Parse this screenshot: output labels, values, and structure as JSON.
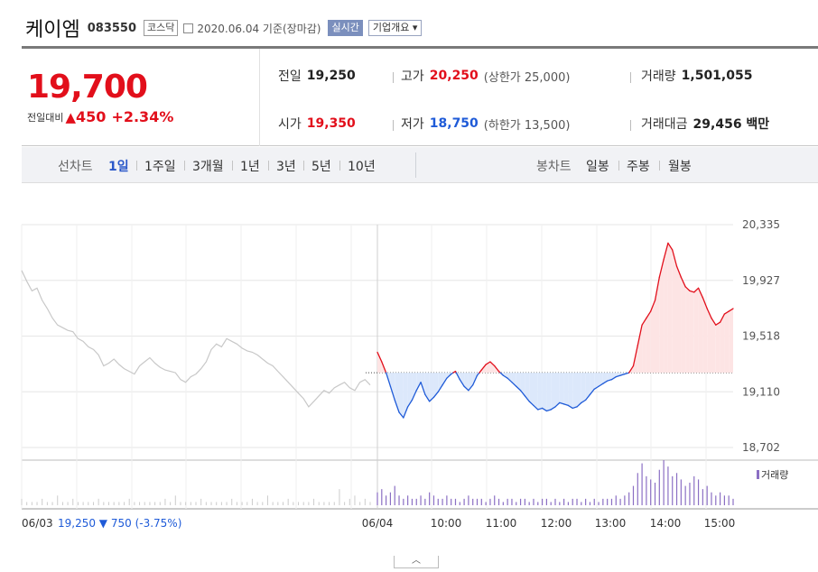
{
  "header": {
    "company_name": "케이엠",
    "code": "083550",
    "market": "코스닥",
    "date_text": "2020.06.04 기준(장마감)",
    "realtime_label": "실시간",
    "info_label": "기업개요 ▾"
  },
  "summary": {
    "price": "19,700",
    "change_label": "전일대비",
    "change_icon": "up-triangle-icon",
    "change_symbol": "▲",
    "change_value": "450",
    "change_pct": "+2.34%",
    "prev_label": "전일",
    "prev_value": "19,250",
    "high_label": "고가",
    "high_value": "20,250",
    "upper_limit": "(상한가 25,000)",
    "volume_label": "거래량",
    "volume_value": "1,501,055",
    "open_label": "시가",
    "open_value": "19,350",
    "low_label": "저가",
    "low_value": "18,750",
    "lower_limit": "(하한가 13,500)",
    "amount_label": "거래대금",
    "amount_value": "29,456 백만"
  },
  "period": {
    "line_label": "선차트",
    "line_tabs": [
      "1일",
      "1주일",
      "3개월",
      "1년",
      "3년",
      "5년",
      "10년"
    ],
    "selected": "1일",
    "candle_label": "봉차트",
    "candle_tabs": [
      "일봉",
      "주봉",
      "월봉"
    ]
  },
  "colors": {
    "up": "#e20f1b",
    "down": "#1f5bd8",
    "up_fill": "#fde4e4",
    "down_fill": "#dce8fb",
    "prev_day_line": "#c8c8c8",
    "volume_bar": "#8b6fc4"
  },
  "footer": {
    "prev_date": "06/03",
    "prev_close": "19,250",
    "prev_change_symbol": "▼",
    "prev_change": "750",
    "prev_change_pct": "(-3.75%)"
  },
  "chart_data": {
    "type": "line",
    "base_price": 19250,
    "ylim": [
      18702,
      20335
    ],
    "y_ticks": [
      "20,335",
      "19,927",
      "19,518",
      "19,110",
      "18,702"
    ],
    "x_ticks": [
      "06/03",
      "06/04",
      "10:00",
      "11:00",
      "12:00",
      "13:00",
      "14:00",
      "15:00"
    ],
    "volume_legend": "거래량",
    "prev_day": {
      "date": "06/03",
      "values": [
        20000,
        19920,
        19850,
        19870,
        19780,
        19720,
        19650,
        19600,
        19580,
        19560,
        19550,
        19500,
        19480,
        19440,
        19420,
        19380,
        19300,
        19320,
        19350,
        19310,
        19280,
        19260,
        19240,
        19300,
        19330,
        19360,
        19320,
        19290,
        19270,
        19260,
        19250,
        19200,
        19180,
        19220,
        19240,
        19280,
        19330,
        19420,
        19460,
        19440,
        19500,
        19480,
        19460,
        19430,
        19410,
        19400,
        19380,
        19350,
        19320,
        19300,
        19260,
        19220,
        19180,
        19140,
        19100,
        19060,
        19000,
        19040,
        19080,
        19120,
        19100,
        19140,
        19160,
        19180,
        19140,
        19120,
        19180,
        19200,
        19160
      ]
    },
    "today": {
      "date": "06/04",
      "values": [
        19400,
        19330,
        19250,
        19150,
        19050,
        18960,
        18920,
        19000,
        19050,
        19120,
        19180,
        19090,
        19040,
        19070,
        19110,
        19160,
        19210,
        19240,
        19260,
        19200,
        19150,
        19120,
        19160,
        19230,
        19270,
        19310,
        19330,
        19300,
        19260,
        19230,
        19210,
        19180,
        19150,
        19120,
        19080,
        19040,
        19010,
        18980,
        18990,
        18970,
        18980,
        19000,
        19030,
        19020,
        19010,
        18990,
        19000,
        19030,
        19050,
        19090,
        19130,
        19150,
        19170,
        19190,
        19200,
        19220,
        19230,
        19240,
        19250,
        19300,
        19450,
        19600,
        19650,
        19700,
        19780,
        19950,
        20080,
        20200,
        20150,
        20030,
        19950,
        19880,
        19850,
        19840,
        19870,
        19800,
        19720,
        19650,
        19600,
        19620,
        19680,
        19700,
        19720
      ]
    },
    "volume_prev": [
      2,
      1,
      1,
      1,
      2,
      1,
      1,
      3,
      1,
      1,
      2,
      1,
      1,
      1,
      1,
      2,
      1,
      1,
      1,
      1,
      1,
      2,
      1,
      1,
      1,
      1,
      1,
      1,
      2,
      1,
      3,
      1,
      1,
      1,
      1,
      2,
      1,
      1,
      1,
      1,
      1,
      2,
      1,
      1,
      1,
      2,
      1,
      1,
      3,
      1,
      1,
      1,
      2,
      1,
      1,
      1,
      1,
      2,
      1,
      1,
      1,
      1,
      5,
      1,
      2,
      3,
      1,
      2,
      1
    ],
    "volume_today": [
      4,
      5,
      3,
      4,
      6,
      3,
      2,
      3,
      2,
      2,
      3,
      2,
      4,
      3,
      2,
      2,
      3,
      2,
      2,
      1,
      2,
      3,
      2,
      2,
      2,
      1,
      2,
      3,
      2,
      1,
      2,
      2,
      1,
      2,
      2,
      1,
      2,
      1,
      2,
      2,
      1,
      2,
      1,
      2,
      1,
      2,
      2,
      1,
      2,
      1,
      2,
      1,
      2,
      2,
      2,
      3,
      2,
      3,
      4,
      6,
      10,
      13,
      9,
      8,
      7,
      11,
      14,
      12,
      9,
      10,
      8,
      6,
      7,
      9,
      8,
      5,
      6,
      4,
      3,
      4,
      3,
      3,
      2
    ]
  }
}
